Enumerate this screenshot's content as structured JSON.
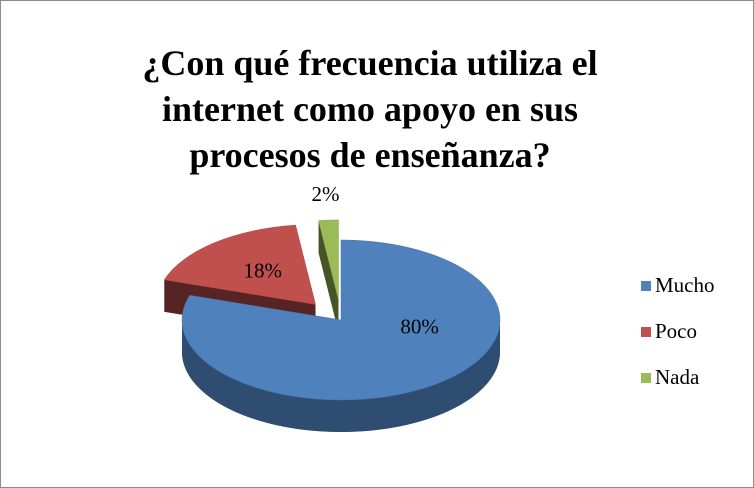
{
  "chart_data": {
    "type": "pie",
    "title": "¿Con qué frecuencia utiliza el internet como apoyo en sus procesos de enseñanza?",
    "categories": [
      "Mucho",
      "Poco",
      "Nada"
    ],
    "values": [
      80,
      18,
      2
    ],
    "value_labels": [
      "80%",
      "18%",
      "2%"
    ],
    "colors": [
      "#4f81bd",
      "#c0504d",
      "#9bbb59"
    ],
    "legend": "right"
  }
}
